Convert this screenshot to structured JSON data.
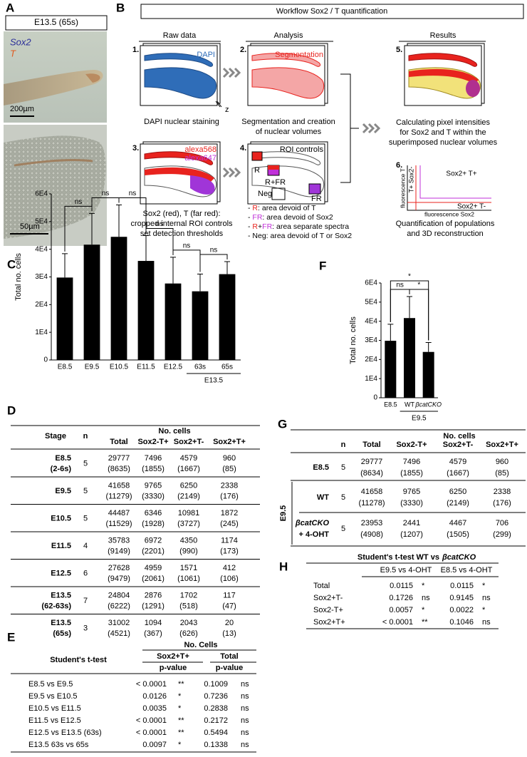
{
  "panel_labels": [
    "A",
    "B",
    "C",
    "D",
    "E",
    "F",
    "G",
    "H"
  ],
  "panel_a": {
    "header": "E13.5 (65s)",
    "stain_1": "Sox2",
    "stain_2": "T",
    "scale_1": "200µm",
    "scale_2": "50µm"
  },
  "panel_b": {
    "title": "Workflow Sox2 / T quantification",
    "columns": [
      "Raw data",
      "Analysis",
      "Results"
    ],
    "steps": [
      "1.",
      "2.",
      "3.",
      "4.",
      "5.",
      "6."
    ],
    "box_labels": {
      "dapi": "DAPI",
      "segmentation": "Segmentation",
      "alexa568": "alexa568",
      "alexa647": "alexa647",
      "roi": "ROI controls",
      "z": "z",
      "r": "R",
      "rfr": "R+FR",
      "fr": "FR",
      "neg": "Neg"
    },
    "captions": {
      "staining": [
        "DAPI nuclear staining"
      ],
      "segmentation": [
        "Segmentation and creation",
        "of nuclear volumes"
      ],
      "controls": [
        "Sox2 (red), T (far red):",
        "cropped internal ROI controls",
        "set detection thresholds"
      ],
      "intensities": [
        "Calculating pixel intensities",
        "for Sox2 and T within the",
        "superimposed nuclear volumes"
      ],
      "quantification": [
        "Quantification of populations",
        "and 3D reconstruction"
      ]
    },
    "items": [
      {
        "parts": [
          "- ",
          "R",
          ": area devoid of T"
        ],
        "colors": [
          "#000000",
          "#e8231e",
          "#000000"
        ]
      },
      {
        "parts": [
          "- ",
          "FR",
          ": area devoid of Sox2"
        ],
        "colors": [
          "#000000",
          "#c02fd8",
          "#000000"
        ]
      },
      {
        "parts": [
          "- ",
          "R",
          "+",
          "FR",
          ": area separate spectra"
        ],
        "colors": [
          "#000000",
          "#e8231e",
          "#000000",
          "#c02fd8",
          "#000000"
        ]
      },
      {
        "parts": [
          "- Neg: area devoid of T or Sox2"
        ],
        "colors": [
          "#000000"
        ]
      }
    ],
    "plot": {
      "y_label": "fluorescence T",
      "x_label": "fluorescence Sox2",
      "q_tr": "Sox2+ T+",
      "q_tl": "T+ Sox2-",
      "q_br": "Sox2+ T-"
    }
  },
  "chart_data": [
    {
      "type": "bar",
      "ylabel": "Total no. cells",
      "categories": [
        "E8.5",
        "E9.5",
        "E10.5",
        "E11.5",
        "E12.5",
        "63s",
        "65s"
      ],
      "group_label": "E13.5",
      "values": [
        29777,
        41658,
        44487,
        35783,
        27628,
        24804,
        31002
      ],
      "errors": [
        8635,
        11279,
        11529,
        9149,
        9479,
        6222,
        4521
      ],
      "color": "#000000",
      "ylim": [
        0,
        60000
      ],
      "yticks": [
        0,
        {
          "value": 10000,
          "label": "1E4"
        },
        {
          "value": 20000,
          "label": "2E4"
        },
        {
          "value": 30000,
          "label": "3E4"
        },
        {
          "value": 40000,
          "label": "4E4"
        },
        {
          "value": 50000,
          "label": "5E4"
        },
        {
          "value": 60000,
          "label": "6E4"
        }
      ],
      "significance": [
        "ns",
        "ns",
        "ns",
        "ns",
        "ns",
        "ns"
      ]
    },
    {
      "type": "bar",
      "ylabel": "Total no. cells",
      "categories": [
        "E8.5",
        "WT",
        "βcatCKO"
      ],
      "group_label": "E9.5",
      "values": [
        29777,
        41658,
        23953
      ],
      "errors": [
        8634,
        11278,
        4908
      ],
      "color": "#000000",
      "ylim": [
        0,
        60000
      ],
      "yticks": [
        0,
        {
          "value": 10000,
          "label": "1E4"
        },
        {
          "value": 20000,
          "label": "2E4"
        },
        {
          "value": 30000,
          "label": "3E4"
        },
        {
          "value": 40000,
          "label": "4E4"
        },
        {
          "value": 50000,
          "label": "5E4"
        },
        {
          "value": 60000,
          "label": "6E4"
        }
      ],
      "significance": [
        "ns",
        "*",
        "*"
      ]
    }
  ],
  "table_d": {
    "group": "No. cells",
    "columns": [
      "Stage",
      "n",
      "Total",
      "Sox2-T+",
      "Sox2+T-",
      "Sox2+T+"
    ],
    "rows": [
      {
        "stage": [
          "E8.5",
          "(2-6s)"
        ],
        "n": 5,
        "cells": [
          [
            29777,
            "(8635)"
          ],
          [
            7496,
            "(1855)"
          ],
          [
            4579,
            "(1667)"
          ],
          [
            960,
            "(85)"
          ]
        ]
      },
      {
        "stage": [
          "E9.5"
        ],
        "n": 5,
        "cells": [
          [
            41658,
            "(11279)"
          ],
          [
            9765,
            "(3330)"
          ],
          [
            6250,
            "(2149)"
          ],
          [
            2338,
            "(176)"
          ]
        ]
      },
      {
        "stage": [
          "E10.5"
        ],
        "n": 5,
        "cells": [
          [
            44487,
            "(11529)"
          ],
          [
            6346,
            "(1928)"
          ],
          [
            10981,
            "(3727)"
          ],
          [
            1872,
            "(245)"
          ]
        ]
      },
      {
        "stage": [
          "E11.5"
        ],
        "n": 4,
        "cells": [
          [
            35783,
            "(9149)"
          ],
          [
            6972,
            "(2201)"
          ],
          [
            4350,
            "(990)"
          ],
          [
            1174,
            "(173)"
          ]
        ]
      },
      {
        "stage": [
          "E12.5"
        ],
        "n": 6,
        "cells": [
          [
            27628,
            "(9479)"
          ],
          [
            4959,
            "(2061)"
          ],
          [
            1571,
            "(1061)"
          ],
          [
            412,
            "(106)"
          ]
        ]
      },
      {
        "stage": [
          "E13.5",
          "(62-63s)"
        ],
        "n": 7,
        "cells": [
          [
            24804,
            "(6222)"
          ],
          [
            2876,
            "(1291)"
          ],
          [
            1702,
            "(518)"
          ],
          [
            117,
            "(47)"
          ]
        ]
      },
      {
        "stage": [
          "E13.5",
          "(65s)"
        ],
        "n": 3,
        "cells": [
          [
            31002,
            "(4521)"
          ],
          [
            1094,
            "(367)"
          ],
          [
            2043,
            "(626)"
          ],
          [
            20,
            "(13)"
          ]
        ]
      }
    ]
  },
  "table_e": {
    "group": "No. Cells",
    "title": "Student's t-test",
    "columns": [
      "Sox2+T+",
      "Total"
    ],
    "sub": [
      "p-value",
      "p-value"
    ],
    "rows": [
      [
        "E8.5 vs E9.5",
        "< 0.0001",
        "**",
        "0.1009",
        "ns"
      ],
      [
        "E9.5 vs E10.5",
        "0.0126",
        "*",
        "0.7236",
        "ns"
      ],
      [
        "E10.5 vs E11.5",
        "0.0035",
        "*",
        "0.2838",
        "ns"
      ],
      [
        "E11.5 vs E12.5",
        "< 0.0001",
        "**",
        "0.2172",
        "ns"
      ],
      [
        "E12.5 vs E13.5 (63s)",
        "< 0.0001",
        "**",
        "0.5494",
        "ns"
      ],
      [
        "E13.5 63s vs 65s",
        "0.0097",
        "*",
        "0.1338",
        "ns"
      ]
    ]
  },
  "table_g": {
    "group": "No. cells",
    "columns": [
      "n",
      "Total",
      "Sox2-T+",
      "Sox2+T-",
      "Sox2+T+"
    ],
    "side_group": "E9.5",
    "rows": [
      {
        "label": [
          "E8.5"
        ],
        "n": 5,
        "cells": [
          [
            29777,
            "(8634)"
          ],
          [
            7496,
            "(1855)"
          ],
          [
            4579,
            "(1667)"
          ],
          [
            960,
            "(85)"
          ]
        ]
      },
      {
        "label": [
          "WT"
        ],
        "n": 5,
        "cells": [
          [
            41658,
            "(11278)"
          ],
          [
            9765,
            "(3330)"
          ],
          [
            6250,
            "(2149)"
          ],
          [
            2338,
            "(176)"
          ]
        ]
      },
      {
        "label": [
          "βcatCKO",
          "+ 4-OHT"
        ],
        "n": 5,
        "cells": [
          [
            23953,
            "(4908)"
          ],
          [
            2441,
            "(1207)"
          ],
          [
            4467,
            "(1505)"
          ],
          [
            706,
            "(299)"
          ]
        ]
      }
    ]
  },
  "table_h": {
    "title": [
      "Student's t-test WT vs",
      "βcatCKO"
    ],
    "columns": [
      "E9.5 vs 4-OHT",
      "E8.5 vs 4-OHT"
    ],
    "rows": [
      [
        "Total",
        "0.0115",
        "*",
        "0.0115",
        "*"
      ],
      [
        "Sox2+T-",
        "0.1726",
        "ns",
        "0.9145",
        "ns"
      ],
      [
        "Sox2-T+",
        "0.0057",
        "*",
        "0.0022",
        "*"
      ],
      [
        "Sox2+T+",
        "< 0.0001",
        "**",
        "0.1046",
        "ns"
      ]
    ]
  }
}
